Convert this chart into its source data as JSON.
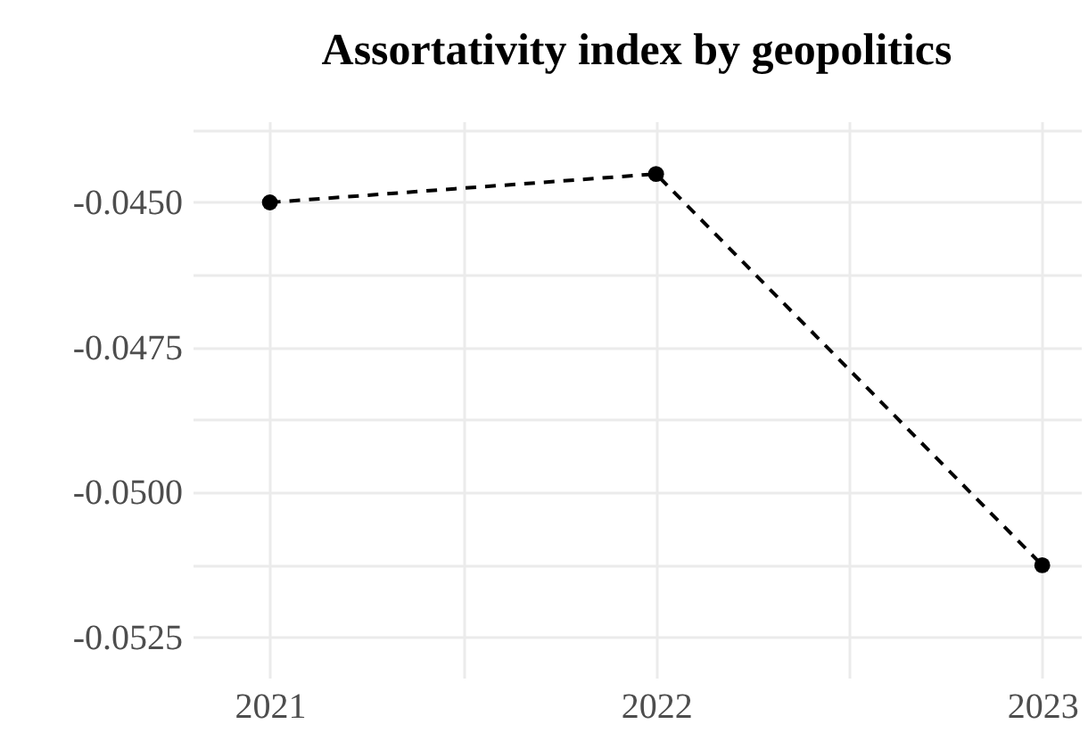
{
  "chart_data": {
    "type": "line",
    "title": "Assortativity index by geopolitics",
    "x": [
      2021,
      2022,
      2023
    ],
    "series": [
      {
        "color": "#000000",
        "values": [
          -0.045,
          -0.04451,
          -0.05126
        ]
      }
    ],
    "xlim": [
      2020.8,
      2023.1
    ],
    "xticks": [
      2021,
      {
        "value": 2021.5,
        "label": null
      },
      2022,
      {
        "value": 2022.5,
        "label": null
      },
      2023
    ],
    "ylim": [
      -0.0532,
      -0.0436
    ],
    "yticks": [
      {
        "value": -0.04375,
        "label": null
      },
      {
        "value": -0.045,
        "label": "-0.0450"
      },
      {
        "value": -0.04625,
        "label": null
      },
      {
        "value": -0.0475,
        "label": "-0.0475"
      },
      {
        "value": -0.04875,
        "label": null
      },
      {
        "value": -0.05,
        "label": "-0.0500"
      },
      {
        "value": -0.05125,
        "label": null
      },
      {
        "value": -0.0525,
        "label": "-0.0525"
      }
    ],
    "grid": true,
    "marker": "circle",
    "line_style": "dashed"
  }
}
